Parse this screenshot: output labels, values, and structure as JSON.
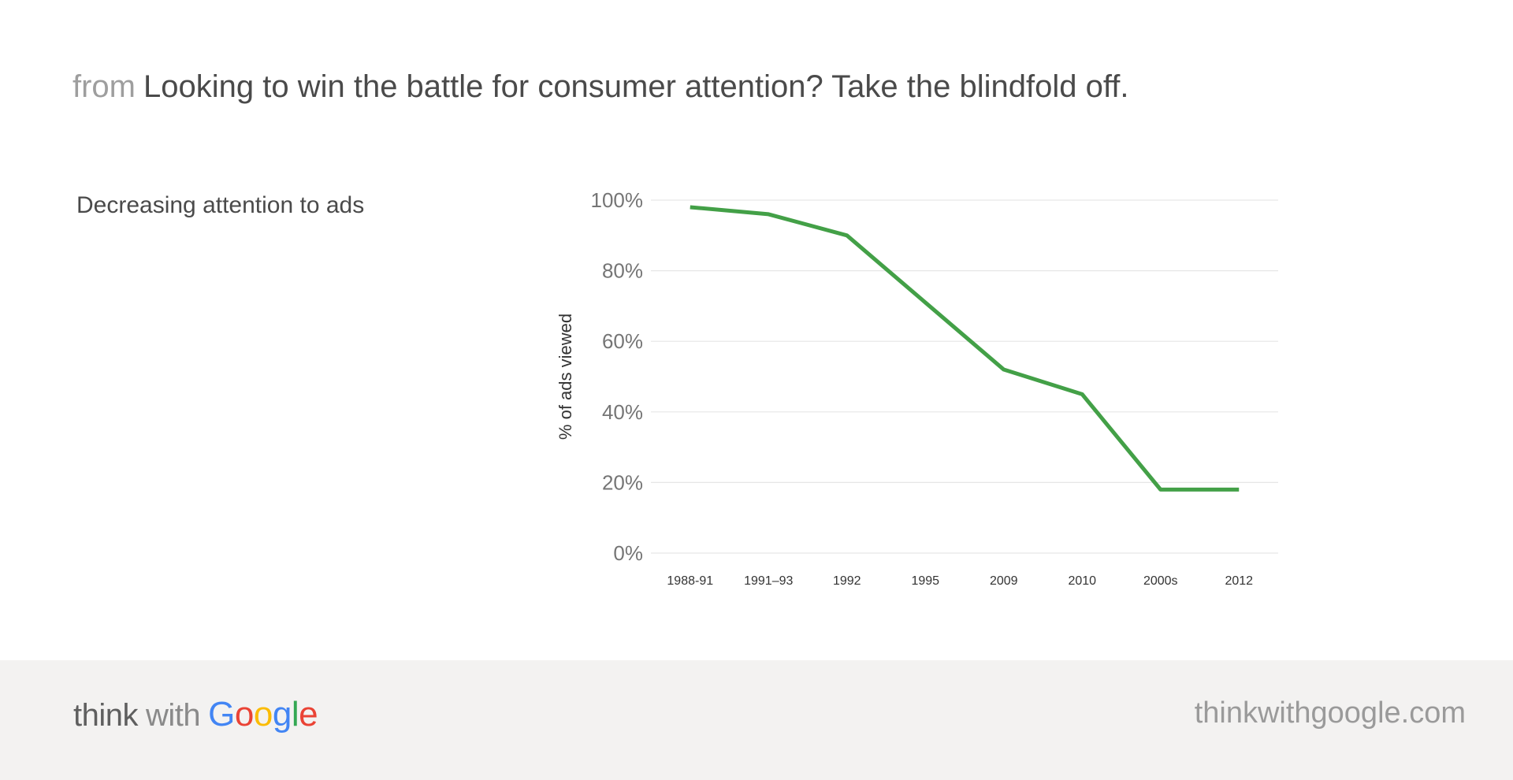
{
  "header": {
    "prefix": "from",
    "title": "Looking to win the battle for consumer attention? Take the blindfold off."
  },
  "chart_caption": "Decreasing attention to ads",
  "footer": {
    "brand_think": "think",
    "brand_with": "with",
    "brand_google_letters": [
      "G",
      "o",
      "o",
      "g",
      "l",
      "e"
    ],
    "site": "thinkwithgoogle.com"
  },
  "colors": {
    "line": "#43a047",
    "google_blue": "#4285f4",
    "google_red": "#ea4335",
    "google_yellow": "#fbbc05",
    "google_green": "#34a853",
    "footer_bg": "#f3f2f1"
  },
  "chart_data": {
    "type": "line",
    "categories": [
      "1988-91",
      "1991–93",
      "1992",
      "1995",
      "2009",
      "2010",
      "2000s",
      "2012"
    ],
    "series": [
      {
        "values": [
          98,
          96,
          90,
          71,
          52,
          45,
          18,
          18
        ]
      }
    ],
    "title": "",
    "xlabel": "",
    "ylabel": "% of ads viewed",
    "ylim": [
      0,
      100
    ],
    "yticks": [
      0,
      20,
      40,
      60,
      80,
      100
    ],
    "ytick_labels": [
      "0%",
      "20%",
      "40%",
      "60%",
      "80%",
      "100%"
    ],
    "grid": true,
    "legend": "none"
  }
}
